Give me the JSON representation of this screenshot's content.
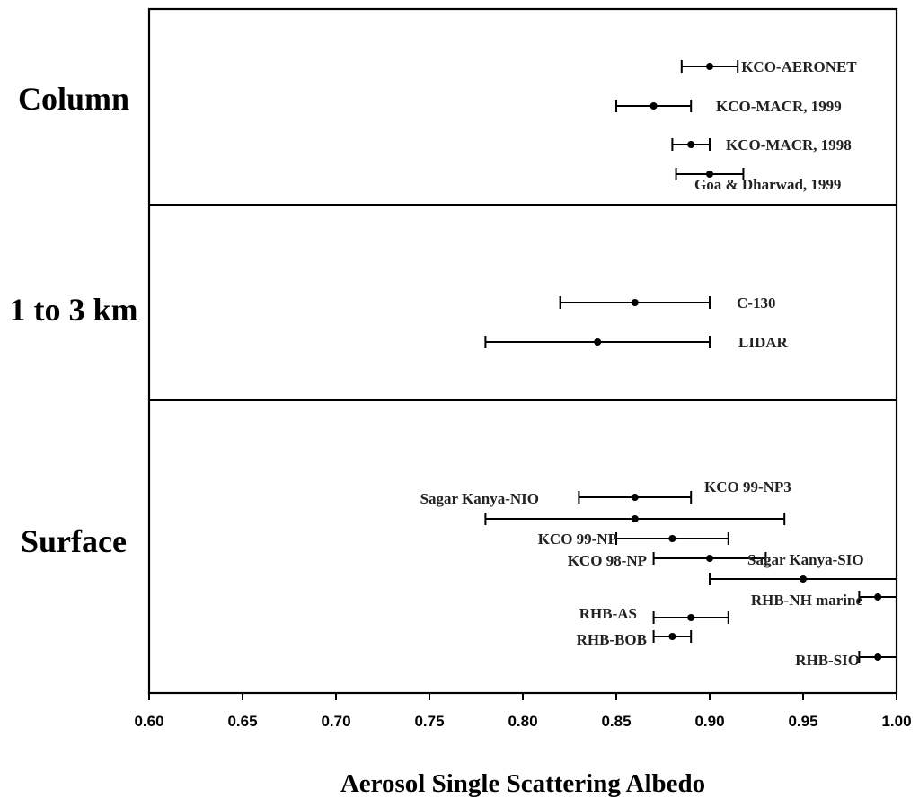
{
  "chart_data": {
    "type": "scatter",
    "xlabel": "Aerosol Single Scattering Albedo",
    "xlim": [
      0.6,
      1.0
    ],
    "x_ticks": [
      "0.60",
      "0.65",
      "0.70",
      "0.75",
      "0.80",
      "0.85",
      "0.90",
      "0.95",
      "1.00"
    ],
    "grid": false,
    "panels": [
      {
        "label": "Column",
        "points": [
          {
            "label": "KCO-AERONET",
            "x": 0.9,
            "xmin": 0.885,
            "xmax": 0.915
          },
          {
            "label": "KCO-MACR, 1999",
            "x": 0.87,
            "xmin": 0.85,
            "xmax": 0.89
          },
          {
            "label": "KCO-MACR, 1998",
            "x": 0.89,
            "xmin": 0.88,
            "xmax": 0.9
          },
          {
            "label": "Goa & Dharwad, 1999",
            "x": 0.9,
            "xmin": 0.882,
            "xmax": 0.918
          }
        ]
      },
      {
        "label": "1 to 3 km",
        "points": [
          {
            "label": "C-130",
            "x": 0.86,
            "xmin": 0.82,
            "xmax": 0.9
          },
          {
            "label": "LIDAR",
            "x": 0.84,
            "xmin": 0.78,
            "xmax": 0.9
          }
        ]
      },
      {
        "label": "Surface",
        "points": [
          {
            "label": "KCO 99-NP3",
            "x": 0.86,
            "xmin": 0.83,
            "xmax": 0.89
          },
          {
            "label": "Sagar Kanya-NIO",
            "x": 0.86,
            "xmin": 0.78,
            "xmax": 0.94
          },
          {
            "label": "KCO 99-NP",
            "x": 0.88,
            "xmin": 0.85,
            "xmax": 0.91
          },
          {
            "label": "KCO 98-NP",
            "x": 0.9,
            "xmin": 0.87,
            "xmax": 0.93
          },
          {
            "label": "Sagar Kanya-SIO",
            "x": 0.95,
            "xmin": 0.9,
            "xmax": 1.0
          },
          {
            "label": "RHB-NH marine",
            "x": 0.99,
            "xmin": 0.98,
            "xmax": 1.0
          },
          {
            "label": "RHB-AS",
            "x": 0.89,
            "xmin": 0.87,
            "xmax": 0.91
          },
          {
            "label": "RHB-BOB",
            "x": 0.88,
            "xmin": 0.87,
            "xmax": 0.89
          },
          {
            "label": "RHB-SIO",
            "x": 0.99,
            "xmin": 0.98,
            "xmax": 1.0
          }
        ]
      }
    ]
  }
}
